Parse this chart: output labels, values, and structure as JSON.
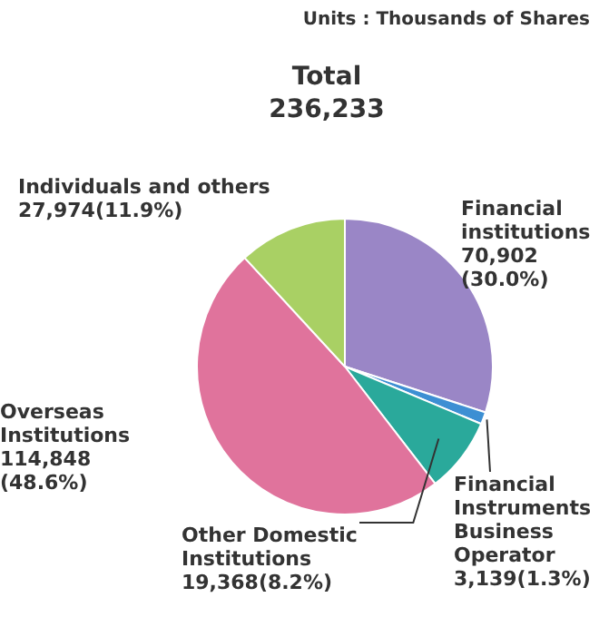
{
  "chart_data": {
    "type": "pie",
    "title": "Total",
    "subtitle": "236,233",
    "annotations": [
      "Units : Thousands of Shares"
    ],
    "categories": [
      "Financial institutions",
      "Financial Instruments Business Operator",
      "Other Domestic Institutions",
      "Overseas Institutions",
      "Individuals and others"
    ],
    "values": [
      70902,
      3139,
      19368,
      114848,
      27974
    ],
    "value_labels": [
      "70,902 (30.0%)",
      "3,139(1.3%)",
      "19,368(8.2%)",
      "114,848 (48.6%)",
      "27,974(11.9%)"
    ],
    "colors": [
      "#9a86c6",
      "#3d8fd3",
      "#2aa99b",
      "#e0739c",
      "#a9d064"
    ],
    "legend": false
  }
}
